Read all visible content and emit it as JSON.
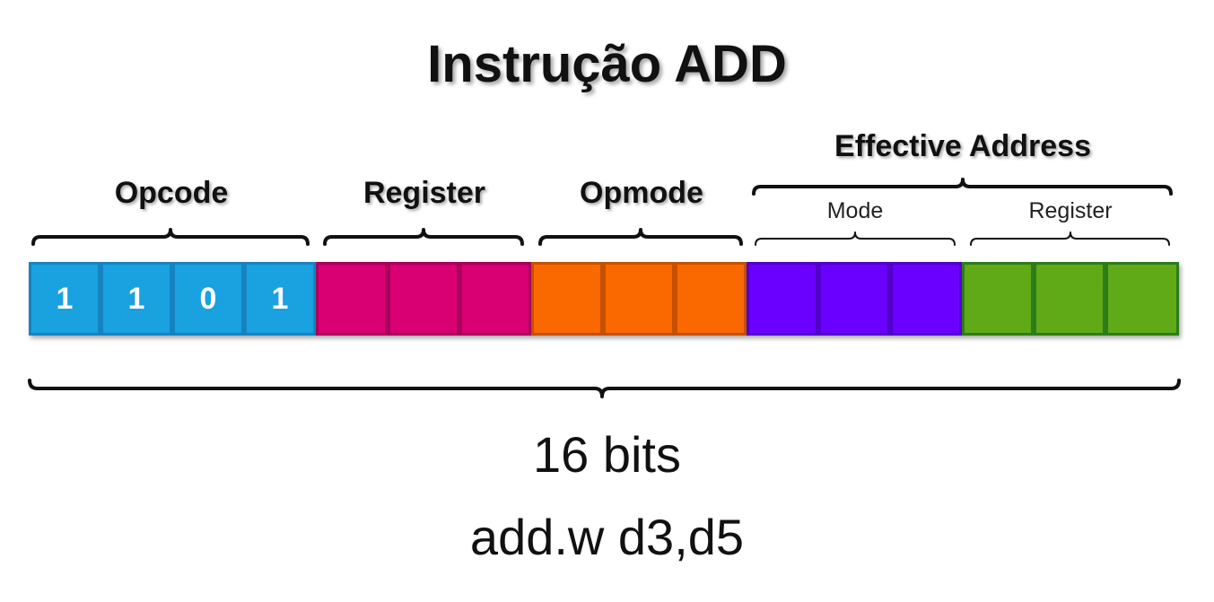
{
  "title": "Instrução ADD",
  "fields": {
    "opcode": {
      "label": "Opcode",
      "bits": [
        "1",
        "1",
        "0",
        "1"
      ],
      "fill": "#1aa1e0",
      "border": "#1683c0"
    },
    "register": {
      "label": "Register",
      "bits": [
        "",
        "",
        ""
      ],
      "fill": "#d90073",
      "border": "#a9005a"
    },
    "opmode": {
      "label": "Opmode",
      "bits": [
        "",
        "",
        ""
      ],
      "fill": "#fa6800",
      "border": "#c35100"
    },
    "ea_mode": {
      "label": "Mode",
      "bits": [
        "",
        "",
        ""
      ],
      "fill": "#6a00ff",
      "border": "#5200c8"
    },
    "ea_register": {
      "label": "Register",
      "bits": [
        "",
        "",
        ""
      ],
      "fill": "#60a917",
      "border": "#2d7c1a"
    }
  },
  "effective_address_label": "Effective Address",
  "total_label": "16 bits",
  "instruction": "add.w d3,d5"
}
